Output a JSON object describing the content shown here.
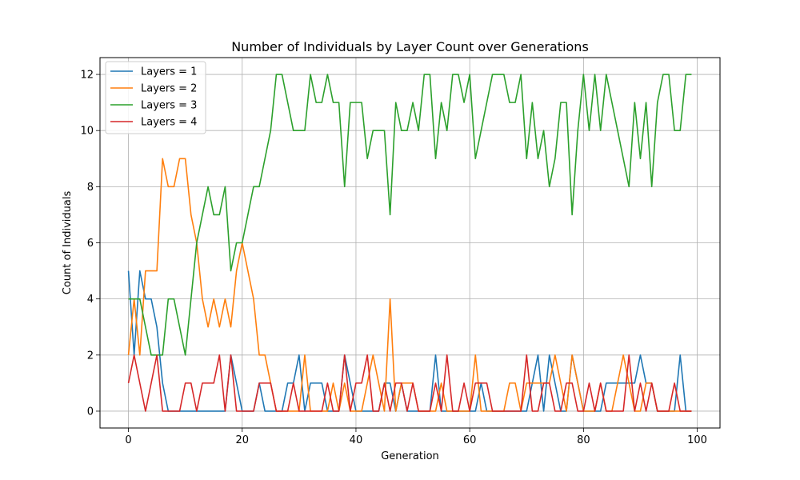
{
  "chart_data": {
    "type": "line",
    "title": "Number of Individuals by Layer Count over Generations",
    "xlabel": "Generation",
    "ylabel": "Count of Individuals",
    "xlim": [
      -5,
      104
    ],
    "ylim": [
      -0.6,
      12.6
    ],
    "xticks": [
      0,
      20,
      40,
      60,
      80,
      100
    ],
    "yticks": [
      0,
      2,
      4,
      6,
      8,
      10,
      12
    ],
    "grid": true,
    "legend_position": "top-left",
    "series": [
      {
        "name": "Layers = 1",
        "color": "#1f77b4",
        "values": [
          5,
          2,
          5,
          4,
          4,
          3,
          1,
          0,
          0,
          0,
          0,
          0,
          0,
          0,
          0,
          0,
          0,
          0,
          2,
          1,
          0,
          0,
          0,
          1,
          0,
          0,
          0,
          0,
          1,
          1,
          2,
          0,
          1,
          1,
          1,
          0,
          0,
          0,
          2,
          1,
          0,
          0,
          0,
          0,
          0,
          1,
          1,
          0,
          1,
          0,
          0,
          0,
          0,
          0,
          2,
          0,
          0,
          0,
          0,
          0,
          0,
          0,
          1,
          0,
          0,
          0,
          0,
          0,
          0,
          0,
          0,
          1,
          2,
          0,
          2,
          1,
          0,
          0,
          2,
          1,
          0,
          0,
          0,
          0,
          1,
          1,
          1,
          1,
          1,
          1,
          2,
          1,
          1,
          0,
          0,
          0,
          0,
          2,
          0,
          0
        ]
      },
      {
        "name": "Layers = 2",
        "color": "#ff7f0e",
        "values": [
          2,
          4,
          2,
          5,
          5,
          5,
          9,
          8,
          8,
          9,
          9,
          7,
          6,
          4,
          3,
          4,
          3,
          4,
          3,
          5,
          6,
          5,
          4,
          2,
          2,
          1,
          0,
          0,
          0,
          0,
          0,
          2,
          0,
          0,
          0,
          0,
          1,
          0,
          1,
          0,
          0,
          0,
          1,
          2,
          1,
          0,
          4,
          0,
          1,
          1,
          1,
          0,
          0,
          0,
          0,
          1,
          0,
          0,
          0,
          0,
          0,
          2,
          0,
          0,
          0,
          0,
          0,
          1,
          1,
          0,
          1,
          1,
          1,
          1,
          1,
          2,
          1,
          0,
          2,
          1,
          0,
          0,
          0,
          1,
          0,
          0,
          1,
          2,
          1,
          0,
          0,
          1,
          1,
          0,
          0,
          0,
          0,
          0,
          0,
          0
        ]
      },
      {
        "name": "Layers = 3",
        "color": "#2ca02c",
        "values": [
          4,
          4,
          4,
          3,
          2,
          2,
          2,
          4,
          4,
          3,
          2,
          4,
          6,
          7,
          8,
          7,
          7,
          8,
          5,
          6,
          6,
          7,
          8,
          8,
          9,
          10,
          12,
          12,
          11,
          10,
          10,
          10,
          12,
          11,
          11,
          12,
          11,
          11,
          8,
          11,
          11,
          11,
          9,
          10,
          10,
          10,
          7,
          11,
          10,
          10,
          11,
          10,
          12,
          12,
          9,
          11,
          10,
          12,
          12,
          11,
          12,
          9,
          10,
          11,
          12,
          12,
          12,
          11,
          11,
          12,
          9,
          11,
          9,
          10,
          8,
          9,
          11,
          11,
          7,
          10,
          12,
          10,
          12,
          10,
          12,
          11,
          10,
          9,
          8,
          11,
          9,
          11,
          8,
          11,
          12,
          12,
          10,
          10,
          12,
          12
        ]
      },
      {
        "name": "Layers = 4",
        "color": "#d62728",
        "values": [
          1,
          2,
          1,
          0,
          1,
          2,
          0,
          0,
          0,
          0,
          1,
          1,
          0,
          1,
          1,
          1,
          2,
          0,
          2,
          0,
          0,
          0,
          0,
          1,
          1,
          1,
          0,
          0,
          0,
          1,
          0,
          0,
          0,
          0,
          0,
          1,
          0,
          0,
          2,
          0,
          1,
          1,
          2,
          0,
          0,
          1,
          0,
          1,
          1,
          0,
          1,
          0,
          0,
          0,
          1,
          0,
          2,
          0,
          0,
          1,
          0,
          1,
          1,
          1,
          0,
          0,
          0,
          0,
          0,
          0,
          2,
          0,
          0,
          1,
          1,
          0,
          0,
          1,
          1,
          0,
          0,
          1,
          0,
          1,
          0,
          0,
          0,
          0,
          2,
          0,
          1,
          0,
          1,
          0,
          0,
          0,
          1,
          0,
          0,
          0
        ]
      }
    ]
  }
}
